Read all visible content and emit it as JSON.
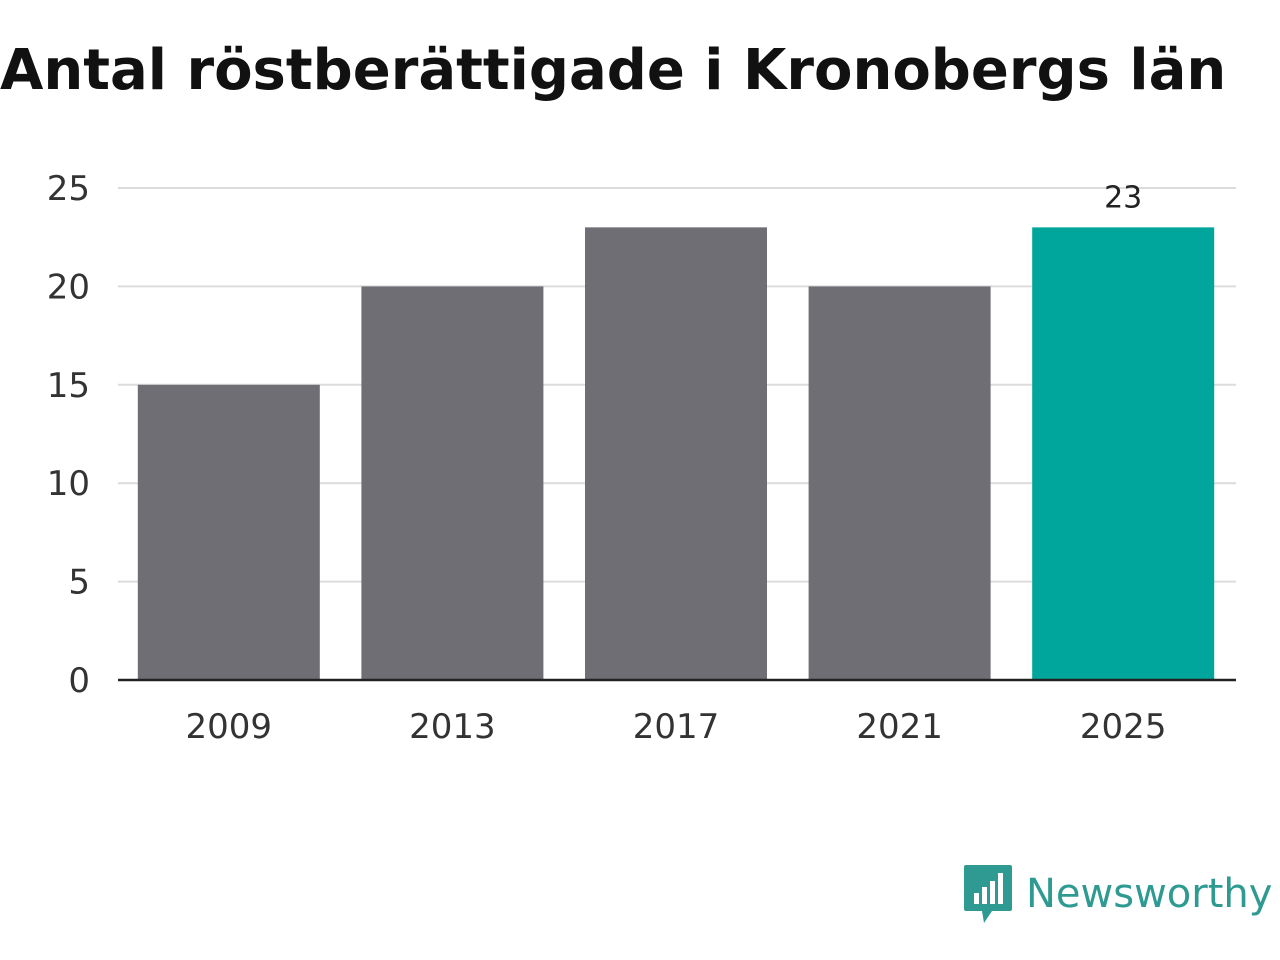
{
  "chart_data": {
    "type": "bar",
    "title": "Antal röstberättigade i Kronobergs län",
    "categories": [
      "2009",
      "2013",
      "2017",
      "2021",
      "2025"
    ],
    "values": [
      15,
      20,
      23,
      20,
      23
    ],
    "ylim": [
      0,
      25
    ],
    "yticks": [
      0,
      5,
      10,
      15,
      20,
      25
    ],
    "grid": true,
    "bar_color": "#6f6e74",
    "highlight_color": "#00a59b",
    "highlight_index": 4,
    "data_labels": [
      {
        "category": "2025",
        "text": "23"
      }
    ]
  },
  "brand": {
    "name": "Newsworthy",
    "icon": "newsworthy-logo-icon",
    "color": "#2f9a91"
  }
}
